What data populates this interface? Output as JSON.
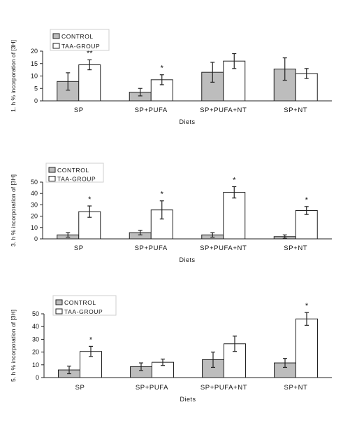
{
  "colors": {
    "control": "#bdbdbd",
    "taa": "#ffffff",
    "stroke": "#222222"
  },
  "chart_data": [
    {
      "type": "bar",
      "ylabel": "1. h % incorporation of [3H]",
      "xlabel": "Diets",
      "categories": [
        "SP",
        "SP+PUFA",
        "SP+PUFA+NT",
        "SP+NT"
      ],
      "ylim": [
        0,
        20
      ],
      "yticks": [
        "0",
        "5",
        "10",
        "15",
        "20"
      ],
      "legend": [
        "CONTROL",
        "TAA-GROUP"
      ],
      "legend_position": "top-left",
      "grid": false,
      "series": [
        {
          "name": "CONTROL",
          "values": [
            7.8,
            3.5,
            11.5,
            12.8
          ],
          "errors": [
            3.5,
            1.5,
            4.0,
            4.5
          ]
        },
        {
          "name": "TAA-GROUP",
          "values": [
            14.5,
            8.5,
            16.0,
            11.0
          ],
          "errors": [
            2.0,
            2.0,
            3.0,
            2.0
          ]
        }
      ],
      "annotations": [
        "**",
        "*",
        "",
        ""
      ]
    },
    {
      "type": "bar",
      "ylabel": "3. h % incorporation of [3H]",
      "xlabel": "Diets",
      "categories": [
        "SP",
        "SP+PUFA",
        "SP+PUFA+NT",
        "SP+NT"
      ],
      "ylim": [
        0,
        50
      ],
      "yticks": [
        "0",
        "10",
        "20",
        "30",
        "40",
        "50"
      ],
      "legend": [
        "CONTROL",
        "TAA-GROUP"
      ],
      "legend_position": "top-left",
      "grid": false,
      "series": [
        {
          "name": "CONTROL",
          "values": [
            3.5,
            5.5,
            3.5,
            2.0
          ],
          "errors": [
            2.0,
            2.0,
            2.0,
            1.5
          ]
        },
        {
          "name": "TAA-GROUP",
          "values": [
            24.0,
            25.5,
            41.0,
            25.0
          ],
          "errors": [
            5.0,
            8.0,
            5.0,
            3.5
          ]
        }
      ],
      "annotations": [
        "*",
        "*",
        "*",
        "*"
      ]
    },
    {
      "type": "bar",
      "ylabel": "5. h % incorporation of [3H]",
      "xlabel": "Diets",
      "categories": [
        "SP",
        "SP+PUFA",
        "SP+PUFA+NT",
        "SP+NT"
      ],
      "ylim": [
        0,
        50
      ],
      "yticks": [
        "0",
        "10",
        "20",
        "30",
        "40",
        "50"
      ],
      "legend": [
        "CONTROL",
        "TAA-GROUP"
      ],
      "legend_position": "top-left",
      "grid": false,
      "series": [
        {
          "name": "CONTROL",
          "values": [
            6.0,
            8.5,
            14.0,
            11.5
          ],
          "errors": [
            3.0,
            3.0,
            6.0,
            3.5
          ]
        },
        {
          "name": "TAA-GROUP",
          "values": [
            20.5,
            12.0,
            26.5,
            46.0
          ],
          "errors": [
            4.0,
            2.5,
            6.0,
            5.0
          ]
        }
      ],
      "annotations": [
        "*",
        "",
        "",
        "*"
      ]
    }
  ]
}
